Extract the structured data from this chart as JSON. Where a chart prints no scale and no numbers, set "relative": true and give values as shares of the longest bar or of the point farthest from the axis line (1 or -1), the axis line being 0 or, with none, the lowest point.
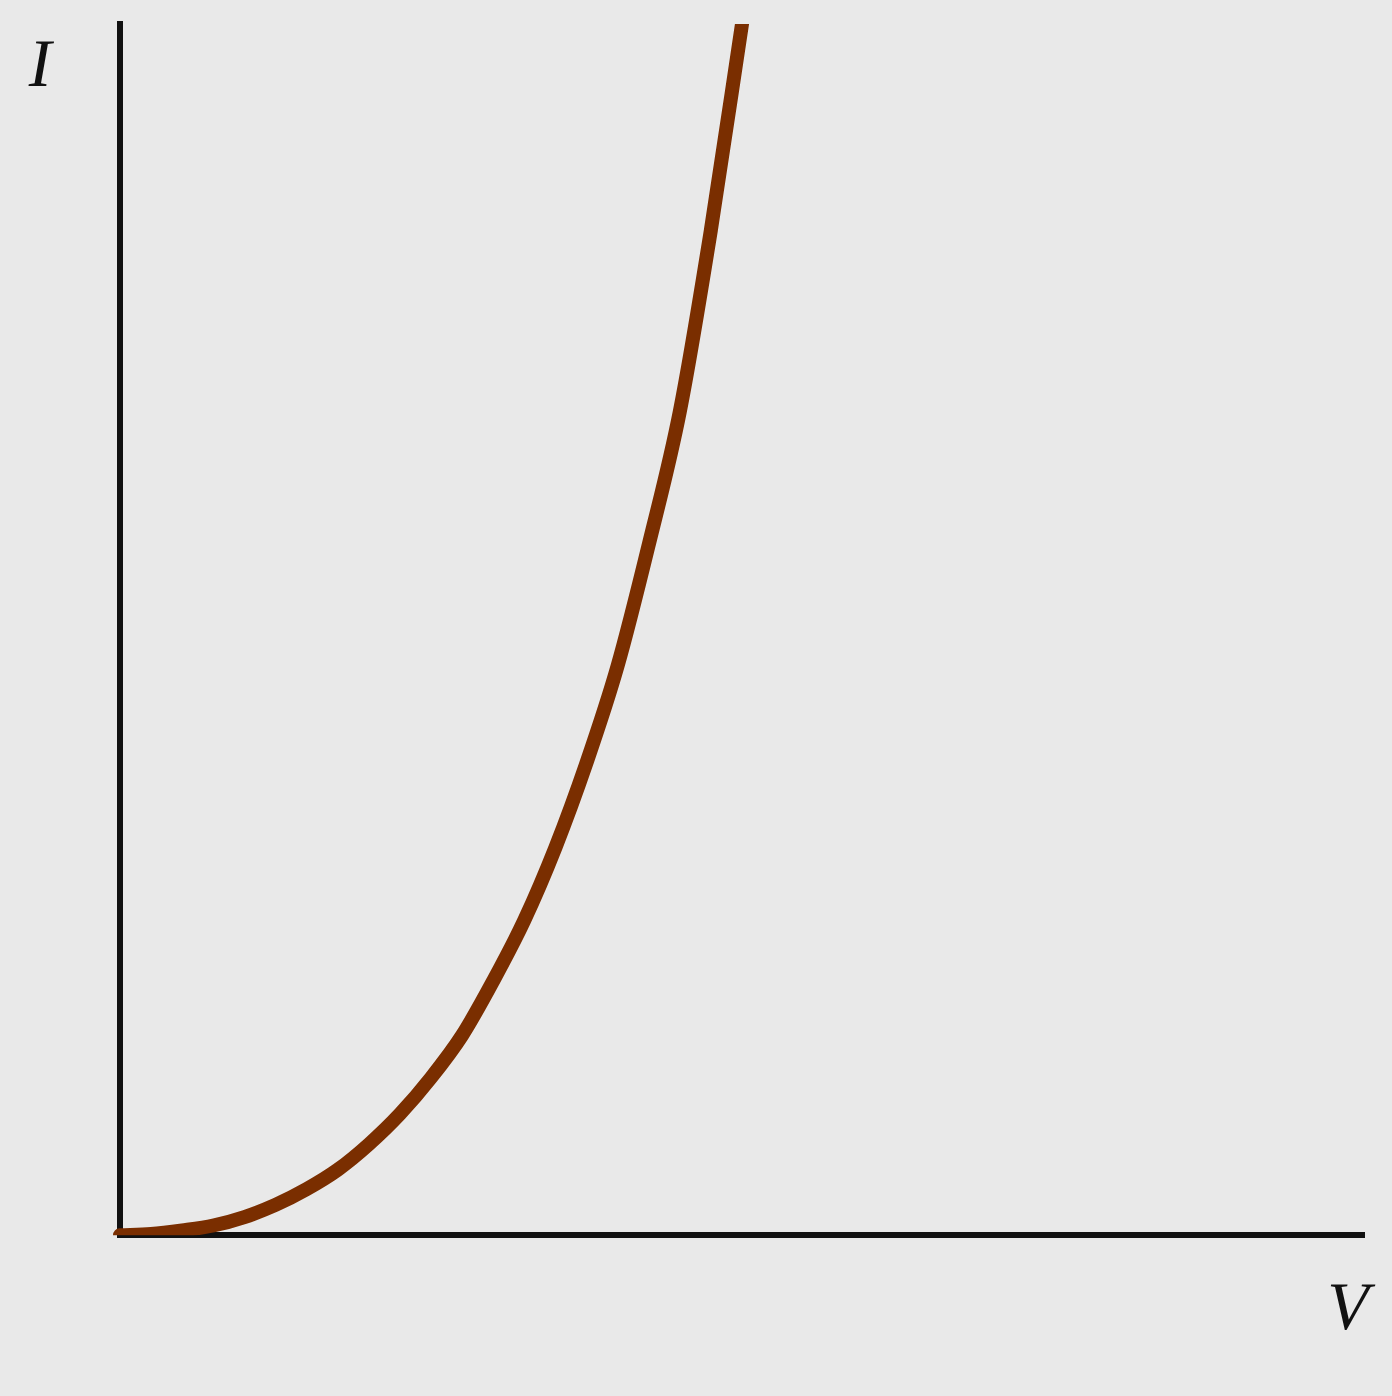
{
  "chart_data": {
    "type": "line",
    "relative": true,
    "xlabel": "V",
    "ylabel": "I",
    "grid": false,
    "legend": false,
    "marker": "none",
    "line_style": "solid",
    "categories": [
      null,
      null,
      null,
      null,
      null,
      null,
      null,
      null,
      null,
      null,
      null,
      null,
      null,
      null,
      null,
      null,
      null,
      null,
      null,
      null,
      null,
      null,
      null,
      null,
      null,
      null,
      null,
      null,
      null,
      null,
      null,
      null,
      null,
      null,
      null,
      null,
      null,
      null,
      null,
      null,
      null
    ],
    "series": [
      {
        "color": "#7a2e00",
        "values": [
          0,
          0.001,
          0.004,
          0.008,
          0.015,
          0.025,
          0.038,
          0.054,
          0.075,
          0.1,
          0.13,
          0.165,
          0.21,
          0.26,
          0.32,
          0.39,
          0.47,
          0.57,
          0.68,
          0.83,
          1,
          null,
          null,
          null,
          null,
          null,
          null,
          null,
          null,
          null,
          null,
          null,
          null,
          null,
          null,
          null,
          null,
          null,
          null,
          null,
          null
        ]
      }
    ]
  }
}
